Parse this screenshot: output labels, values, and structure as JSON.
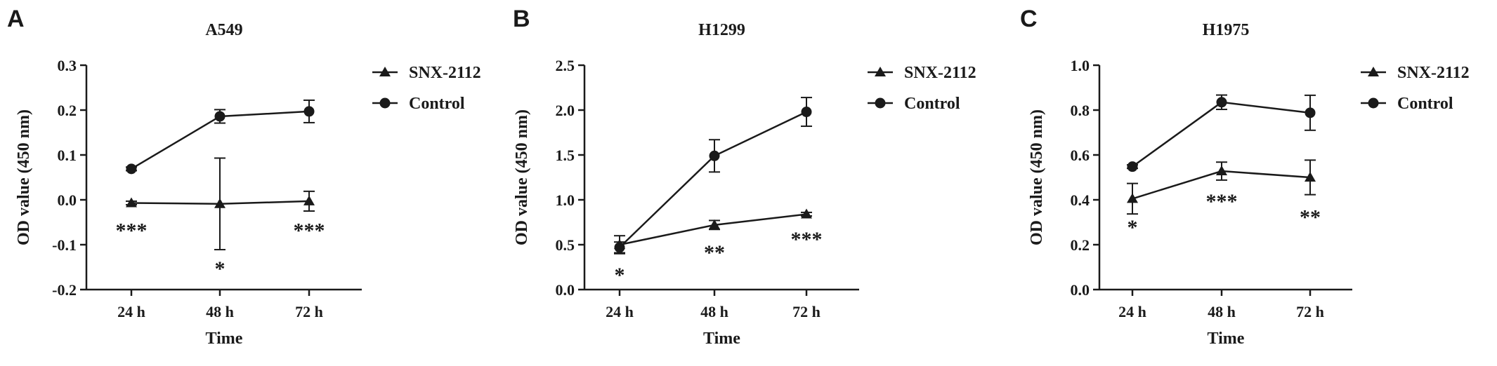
{
  "chart_data": [
    {
      "type": "line",
      "panel": "A",
      "title": "A549",
      "xlabel": "Time",
      "ylabel": "OD value (450 nm)",
      "categories": [
        "24 h",
        "48 h",
        "72 h"
      ],
      "ylim": [
        -0.2,
        0.3
      ],
      "yticks": [
        "-0.2",
        "-0.1",
        "0.0",
        "0.1",
        "0.2",
        "0.3"
      ],
      "legend_position": "top-right",
      "series": [
        {
          "name": "SNX-2112",
          "marker": "triangle",
          "values": [
            -0.007,
            -0.009,
            -0.003
          ],
          "errors": [
            0.004,
            0.102,
            0.022
          ]
        },
        {
          "name": "Control",
          "marker": "circle",
          "values": [
            0.069,
            0.186,
            0.197
          ],
          "errors": [
            0.004,
            0.015,
            0.025
          ]
        }
      ],
      "significance": [
        {
          "category": "24 h",
          "label": "***",
          "value": -0.065
        },
        {
          "category": "48 h",
          "label": "*",
          "value": -0.15
        },
        {
          "category": "72 h",
          "label": "***",
          "value": -0.065
        }
      ]
    },
    {
      "type": "line",
      "panel": "B",
      "title": "H1299",
      "xlabel": "Time",
      "ylabel": "OD value (450 nm)",
      "categories": [
        "24 h",
        "48 h",
        "72 h"
      ],
      "ylim": [
        0.0,
        2.5
      ],
      "yticks": [
        "0.0",
        "0.5",
        "1.0",
        "1.5",
        "2.0",
        "2.5"
      ],
      "legend_position": "top-right",
      "series": [
        {
          "name": "SNX-2112",
          "marker": "triangle",
          "values": [
            0.5,
            0.72,
            0.84
          ],
          "errors": [
            0.1,
            0.05,
            0.02
          ]
        },
        {
          "name": "Control",
          "marker": "circle",
          "values": [
            0.47,
            1.49,
            1.98
          ],
          "errors": [
            0.06,
            0.18,
            0.16
          ]
        }
      ],
      "significance": [
        {
          "category": "24 h",
          "label": "*",
          "value": 0.18
        },
        {
          "category": "48 h",
          "label": "**",
          "value": 0.43
        },
        {
          "category": "72 h",
          "label": "***",
          "value": 0.58
        }
      ]
    },
    {
      "type": "line",
      "panel": "C",
      "title": "H1975",
      "xlabel": "Time",
      "ylabel": "OD value (450 nm)",
      "categories": [
        "24 h",
        "48 h",
        "72 h"
      ],
      "ylim": [
        0.0,
        1.0
      ],
      "yticks": [
        "0.0",
        "0.2",
        "0.4",
        "0.6",
        "0.8",
        "1.0"
      ],
      "legend_position": "top-right",
      "series": [
        {
          "name": "SNX-2112",
          "marker": "triangle",
          "values": [
            0.405,
            0.528,
            0.5
          ],
          "errors": [
            0.068,
            0.04,
            0.077
          ]
        },
        {
          "name": "Control",
          "marker": "circle",
          "values": [
            0.548,
            0.835,
            0.788
          ],
          "errors": [
            0.008,
            0.032,
            0.078
          ]
        }
      ],
      "significance": [
        {
          "category": "24 h",
          "label": "*",
          "value": 0.285
        },
        {
          "category": "48 h",
          "label": "***",
          "value": 0.4
        },
        {
          "category": "72 h",
          "label": "**",
          "value": 0.33
        }
      ]
    }
  ]
}
